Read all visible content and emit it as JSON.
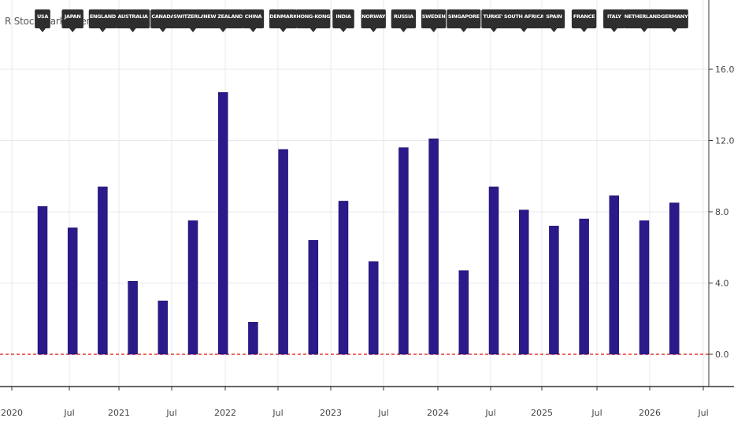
{
  "indicator": {
    "title": "R Stock Market Terminal [w]"
  },
  "colors": {
    "bar": "#2b1a8a",
    "bar_stroke": "#1a0f66",
    "zero_line": "#e53935",
    "grid": "#e6e9ee",
    "axis": "#333333",
    "flag_bg": "#2e2e2e",
    "flag_text": "#ffffff"
  },
  "chart_data": {
    "type": "bar",
    "categories": [
      "USA",
      "JAPAN",
      "ENGLAND",
      "AUSTRALIA",
      "CANADA",
      "SWITZERLAND",
      "NEW ZEALAND",
      "CHINA",
      "DENMARK",
      "HONG-KONG",
      "INDIA",
      "NORWAY",
      "RUSSIA",
      "SWEDEN",
      "SINGAPORE",
      "TURKEY",
      "SOUTH AFRICA",
      "SPAIN",
      "FRANCE",
      "ITALY",
      "NETHERLANDS",
      "GERMANY"
    ],
    "values": [
      8.3,
      7.1,
      9.4,
      4.1,
      3.0,
      7.5,
      14.7,
      1.8,
      11.5,
      6.4,
      8.6,
      5.2,
      11.6,
      12.1,
      4.7,
      9.4,
      8.1,
      7.2,
      7.6,
      8.9,
      7.5,
      8.5
    ],
    "title": "",
    "xlabel": "",
    "ylabel": "",
    "ylim": [
      -1.8,
      19.5
    ],
    "y_ticks": [
      "16.0",
      "12.0",
      "8.0",
      "4.0",
      "0.0"
    ],
    "y_tick_values": [
      16,
      12,
      8,
      4,
      0
    ],
    "x_ticks": [
      "2020",
      "Jul",
      "2021",
      "Jul",
      "2022",
      "Jul",
      "2023",
      "Jul",
      "2024",
      "Jul",
      "2025",
      "Jul",
      "2026",
      "Jul"
    ],
    "reference_line": {
      "value": 0,
      "style": "dashed"
    },
    "grid": true,
    "legend": "none"
  }
}
